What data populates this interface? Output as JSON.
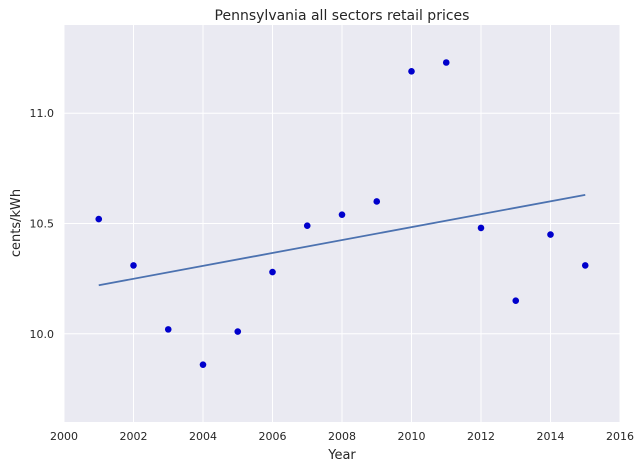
{
  "chart_data": {
    "type": "scatter",
    "title": "Pennsylvania   all sectors retail prices",
    "xlabel": "Year",
    "ylabel": "cents/kWh",
    "xlim": [
      2000,
      2016
    ],
    "ylim": [
      9.6,
      11.4
    ],
    "xticks": [
      2000,
      2002,
      2004,
      2006,
      2008,
      2010,
      2012,
      2014,
      2016
    ],
    "yticks": [
      10.0,
      10.5,
      11.0
    ],
    "ytick_labels": [
      "10.0",
      "10.5",
      "11.0"
    ],
    "grid": true,
    "series": [
      {
        "type": "scatter",
        "color": "#0000cc",
        "points": [
          {
            "x": 2001,
            "y": 10.52
          },
          {
            "x": 2002,
            "y": 10.31
          },
          {
            "x": 2003,
            "y": 10.02
          },
          {
            "x": 2004,
            "y": 9.86
          },
          {
            "x": 2005,
            "y": 10.01
          },
          {
            "x": 2006,
            "y": 10.28
          },
          {
            "x": 2007,
            "y": 10.49
          },
          {
            "x": 2008,
            "y": 10.54
          },
          {
            "x": 2009,
            "y": 10.6
          },
          {
            "x": 2010,
            "y": 11.19
          },
          {
            "x": 2011,
            "y": 11.23
          },
          {
            "x": 2012,
            "y": 10.48
          },
          {
            "x": 2013,
            "y": 10.15
          },
          {
            "x": 2014,
            "y": 10.45
          },
          {
            "x": 2015,
            "y": 10.31
          }
        ]
      },
      {
        "type": "line",
        "color": "#4c72b0",
        "points": [
          {
            "x": 2001,
            "y": 10.22
          },
          {
            "x": 2015,
            "y": 10.63
          }
        ]
      }
    ],
    "colors": {
      "plot_background": "#eaeaf2",
      "grid": "#ffffff",
      "text": "#262626"
    }
  }
}
